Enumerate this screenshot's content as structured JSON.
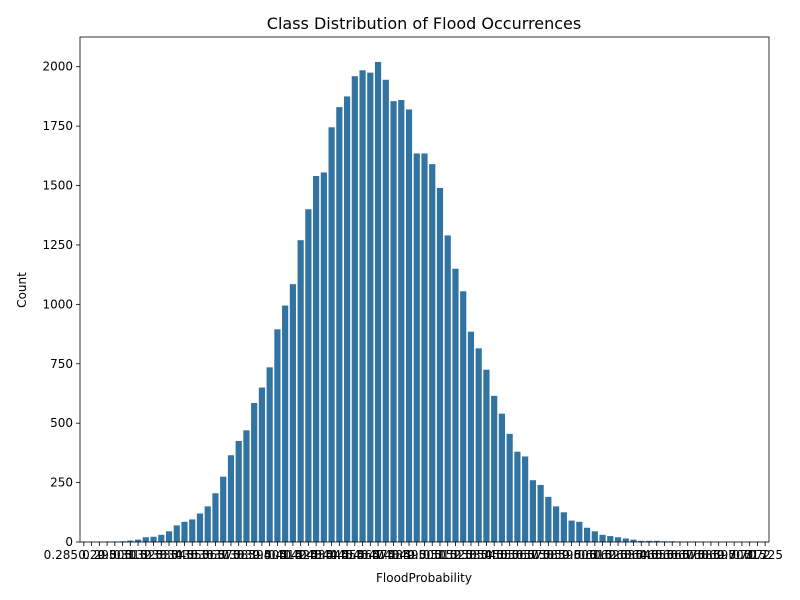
{
  "chart_data": {
    "type": "bar",
    "title": "Class Distribution of Flood Occurrences",
    "xlabel": "FloodProbability",
    "ylabel": "Count",
    "ylim": [
      0,
      2125
    ],
    "yticks": [
      0,
      250,
      500,
      750,
      1000,
      1250,
      1500,
      1750,
      2000
    ],
    "grid": false,
    "color": "#3274a1",
    "categories": [
      "0.285",
      "0.29",
      "0.295",
      "0.3",
      "0.305",
      "0.31",
      "0.315",
      "0.32",
      "0.325",
      "0.33",
      "0.335",
      "0.34",
      "0.345",
      "0.35",
      "0.355",
      "0.36",
      "0.365",
      "0.37",
      "0.375",
      "0.38",
      "0.385",
      "0.39",
      "0.395",
      "0.4",
      "0.405",
      "0.41",
      "0.415",
      "0.42",
      "0.425",
      "0.43",
      "0.435",
      "0.44",
      "0.445",
      "0.45",
      "0.455",
      "0.46",
      "0.465",
      "0.47",
      "0.475",
      "0.48",
      "0.485",
      "0.49",
      "0.495",
      "0.5",
      "0.505",
      "0.51",
      "0.515",
      "0.52",
      "0.525",
      "0.53",
      "0.535",
      "0.54",
      "0.545",
      "0.55",
      "0.555",
      "0.56",
      "0.565",
      "0.57",
      "0.575",
      "0.58",
      "0.585",
      "0.59",
      "0.595",
      "0.6",
      "0.605",
      "0.61",
      "0.615",
      "0.62",
      "0.625",
      "0.63",
      "0.635",
      "0.64",
      "0.645",
      "0.65",
      "0.655",
      "0.66",
      "0.665",
      "0.67",
      "0.675",
      "0.68",
      "0.685",
      "0.69",
      "0.695",
      "0.7",
      "0.705",
      "0.71",
      "0.715",
      "0.72",
      "0.725"
    ],
    "values": [
      1,
      1,
      1,
      2,
      2,
      3,
      6,
      10,
      20,
      22,
      30,
      45,
      70,
      85,
      95,
      120,
      150,
      205,
      275,
      365,
      425,
      470,
      585,
      650,
      735,
      895,
      995,
      1085,
      1270,
      1400,
      1540,
      1555,
      1745,
      1830,
      1875,
      1960,
      1985,
      1975,
      2020,
      1945,
      1855,
      1860,
      1820,
      1635,
      1635,
      1590,
      1490,
      1290,
      1150,
      1055,
      885,
      815,
      725,
      615,
      540,
      455,
      380,
      360,
      260,
      240,
      190,
      150,
      125,
      90,
      85,
      60,
      45,
      30,
      25,
      20,
      15,
      10,
      5,
      5,
      5,
      3,
      3,
      2,
      2,
      2,
      1,
      1,
      1,
      1,
      1,
      1,
      1,
      1,
      1
    ]
  }
}
